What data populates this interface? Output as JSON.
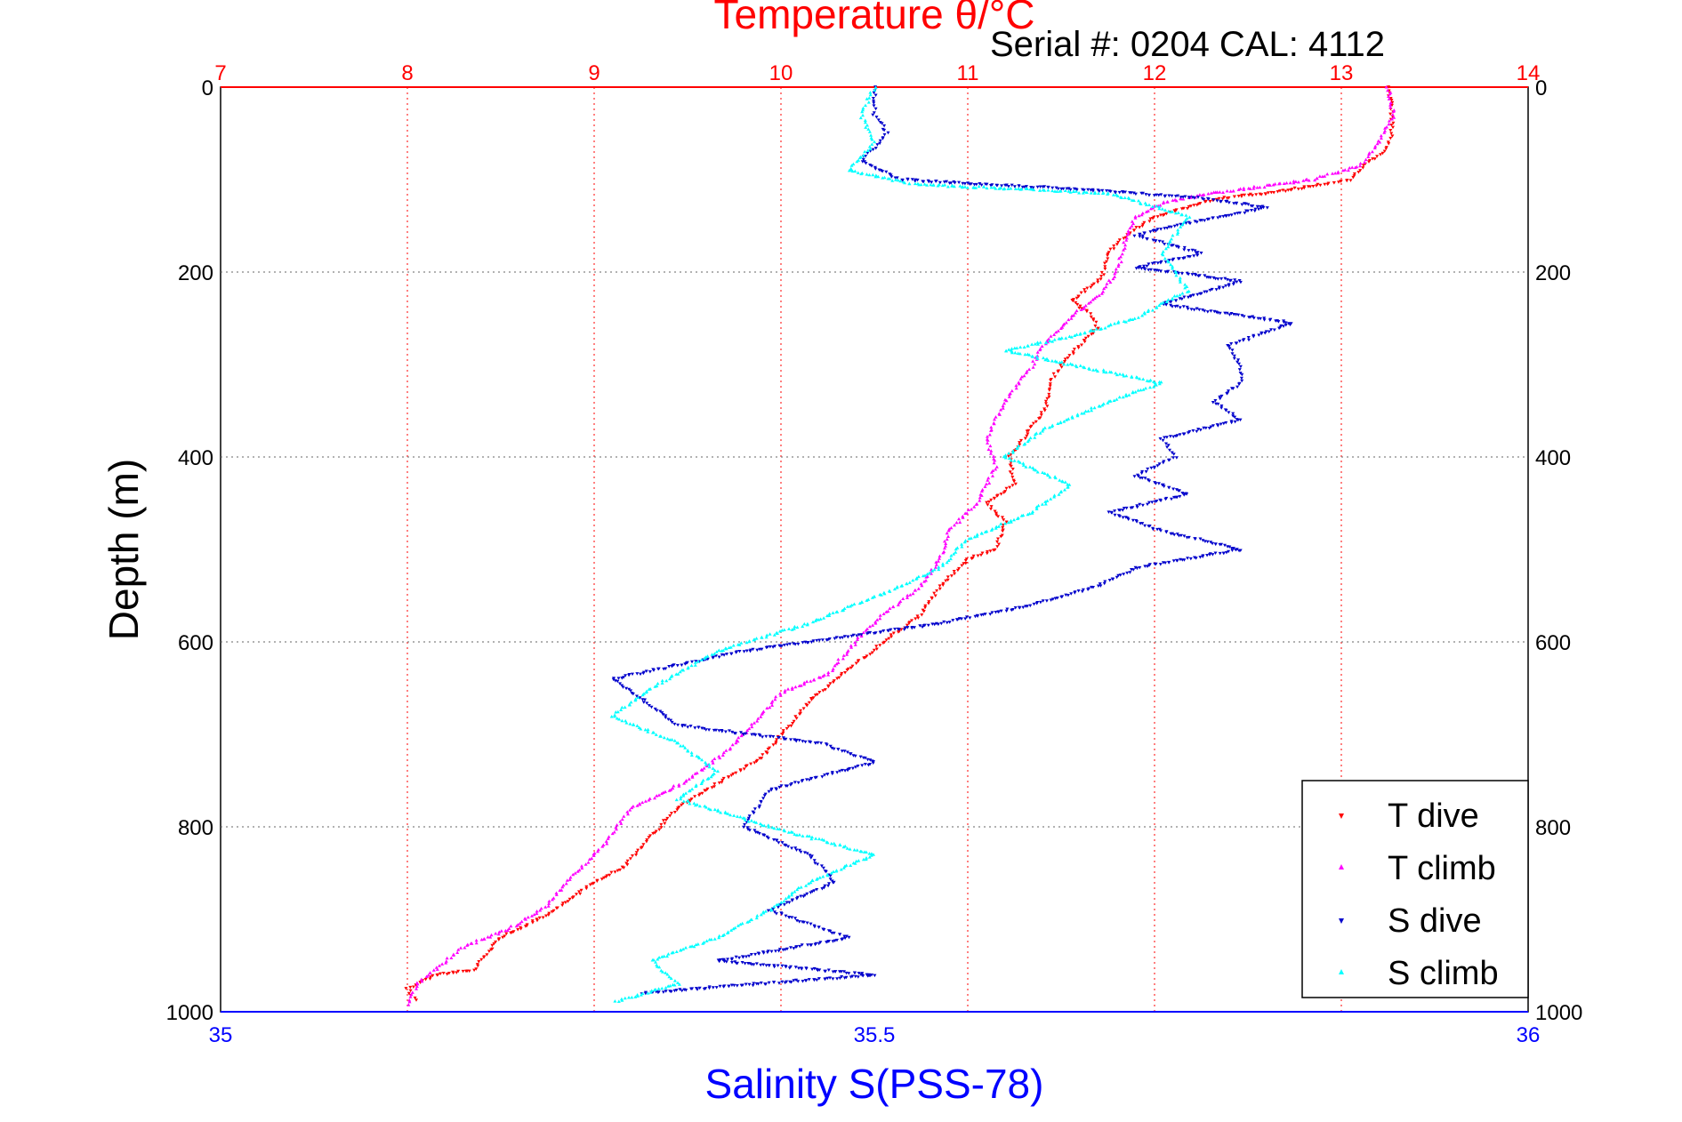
{
  "chart_data": {
    "type": "scatter",
    "title_top": "Temperature θ/°C",
    "title_bottom": "Salinity S(PSS-78)",
    "ylabel": "Depth (m)",
    "annotation": "Serial #: 0204  CAL: 4112",
    "temperature_axis": {
      "range": [
        7,
        14
      ],
      "ticks": [
        "7",
        "8",
        "9",
        "10",
        "11",
        "12",
        "13",
        "14"
      ]
    },
    "salinity_axis": {
      "range": [
        35,
        36
      ],
      "ticks": [
        "35",
        "35.5",
        "36"
      ]
    },
    "depth_axis": {
      "range": [
        0,
        1000
      ],
      "ticks": [
        "0",
        "200",
        "400",
        "600",
        "800",
        "1000"
      ]
    },
    "legend": [
      "T dive",
      "T climb",
      "S dive",
      "S climb"
    ],
    "colors": {
      "t_dive": "#ff0000",
      "t_climb": "#ff00ff",
      "s_dive": "#0000cc",
      "s_climb": "#00ffff",
      "grid": "#666666",
      "temp_grid": "#ff0000"
    },
    "series": [
      {
        "name": "T dive",
        "axis": "temperature",
        "points": [
          [
            13.25,
            0
          ],
          [
            13.27,
            20
          ],
          [
            13.27,
            50
          ],
          [
            13.23,
            70
          ],
          [
            13.12,
            85
          ],
          [
            13.05,
            100
          ],
          [
            12.6,
            115
          ],
          [
            12.35,
            120
          ],
          [
            12.0,
            140
          ],
          [
            11.85,
            160
          ],
          [
            11.75,
            180
          ],
          [
            11.72,
            205
          ],
          [
            11.6,
            225
          ],
          [
            11.55,
            230
          ],
          [
            11.65,
            245
          ],
          [
            11.7,
            260
          ],
          [
            11.55,
            290
          ],
          [
            11.45,
            315
          ],
          [
            11.42,
            345
          ],
          [
            11.3,
            380
          ],
          [
            11.22,
            400
          ],
          [
            11.25,
            430
          ],
          [
            11.1,
            450
          ],
          [
            11.2,
            470
          ],
          [
            11.15,
            500
          ],
          [
            11.0,
            510
          ],
          [
            10.85,
            540
          ],
          [
            10.75,
            570
          ],
          [
            10.55,
            600
          ],
          [
            10.3,
            640
          ],
          [
            10.15,
            665
          ],
          [
            10.05,
            690
          ],
          [
            9.9,
            725
          ],
          [
            9.6,
            760
          ],
          [
            9.45,
            780
          ],
          [
            9.3,
            810
          ],
          [
            9.15,
            845
          ],
          [
            9.0,
            860
          ],
          [
            8.75,
            895
          ],
          [
            8.5,
            920
          ],
          [
            8.35,
            955
          ],
          [
            8.15,
            960
          ],
          [
            8.0,
            975
          ],
          [
            8.05,
            990
          ]
        ]
      },
      {
        "name": "T climb",
        "axis": "temperature",
        "points": [
          [
            13.25,
            0
          ],
          [
            13.28,
            30
          ],
          [
            13.2,
            60
          ],
          [
            13.1,
            85
          ],
          [
            12.85,
            100
          ],
          [
            12.3,
            115
          ],
          [
            12.05,
            125
          ],
          [
            11.9,
            140
          ],
          [
            11.85,
            160
          ],
          [
            11.8,
            200
          ],
          [
            11.7,
            225
          ],
          [
            11.55,
            250
          ],
          [
            11.4,
            280
          ],
          [
            11.35,
            300
          ],
          [
            11.2,
            340
          ],
          [
            11.1,
            380
          ],
          [
            11.15,
            410
          ],
          [
            11.05,
            450
          ],
          [
            10.9,
            480
          ],
          [
            10.85,
            510
          ],
          [
            10.75,
            540
          ],
          [
            10.55,
            570
          ],
          [
            10.4,
            600
          ],
          [
            10.25,
            635
          ],
          [
            10.0,
            655
          ],
          [
            9.85,
            690
          ],
          [
            9.7,
            720
          ],
          [
            9.5,
            750
          ],
          [
            9.2,
            780
          ],
          [
            9.05,
            820
          ],
          [
            8.9,
            850
          ],
          [
            8.75,
            885
          ],
          [
            8.55,
            910
          ],
          [
            8.3,
            930
          ],
          [
            8.05,
            970
          ],
          [
            8.0,
            995
          ]
        ]
      },
      {
        "name": "S dive",
        "axis": "salinity",
        "points": [
          [
            35.5,
            0
          ],
          [
            35.5,
            30
          ],
          [
            35.51,
            50
          ],
          [
            35.49,
            80
          ],
          [
            35.52,
            100
          ],
          [
            35.65,
            110
          ],
          [
            35.75,
            120
          ],
          [
            35.8,
            130
          ],
          [
            35.73,
            150
          ],
          [
            35.7,
            160
          ],
          [
            35.75,
            180
          ],
          [
            35.7,
            195
          ],
          [
            35.78,
            210
          ],
          [
            35.72,
            235
          ],
          [
            35.82,
            255
          ],
          [
            35.77,
            280
          ],
          [
            35.78,
            300
          ],
          [
            35.78,
            320
          ],
          [
            35.76,
            340
          ],
          [
            35.78,
            360
          ],
          [
            35.72,
            380
          ],
          [
            35.73,
            400
          ],
          [
            35.7,
            420
          ],
          [
            35.74,
            440
          ],
          [
            35.68,
            460
          ],
          [
            35.72,
            480
          ],
          [
            35.78,
            500
          ],
          [
            35.7,
            520
          ],
          [
            35.67,
            540
          ],
          [
            35.62,
            560
          ],
          [
            35.55,
            580
          ],
          [
            35.4,
            610
          ],
          [
            35.3,
            640
          ],
          [
            35.32,
            660
          ],
          [
            35.35,
            690
          ],
          [
            35.46,
            710
          ],
          [
            35.5,
            730
          ],
          [
            35.42,
            760
          ],
          [
            35.4,
            800
          ],
          [
            35.45,
            830
          ],
          [
            35.47,
            860
          ],
          [
            35.42,
            890
          ],
          [
            35.48,
            920
          ],
          [
            35.38,
            945
          ],
          [
            35.5,
            960
          ],
          [
            35.32,
            980
          ]
        ]
      },
      {
        "name": "S climb",
        "axis": "salinity",
        "points": [
          [
            35.5,
            0
          ],
          [
            35.49,
            30
          ],
          [
            35.5,
            60
          ],
          [
            35.48,
            90
          ],
          [
            35.53,
            105
          ],
          [
            35.68,
            115
          ],
          [
            35.74,
            140
          ],
          [
            35.72,
            180
          ],
          [
            35.74,
            220
          ],
          [
            35.7,
            250
          ],
          [
            35.65,
            270
          ],
          [
            35.6,
            285
          ],
          [
            35.65,
            300
          ],
          [
            35.72,
            320
          ],
          [
            35.68,
            340
          ],
          [
            35.63,
            370
          ],
          [
            35.6,
            400
          ],
          [
            35.65,
            430
          ],
          [
            35.62,
            460
          ],
          [
            35.57,
            490
          ],
          [
            35.55,
            520
          ],
          [
            35.52,
            540
          ],
          [
            35.45,
            580
          ],
          [
            35.38,
            610
          ],
          [
            35.33,
            650
          ],
          [
            35.3,
            680
          ],
          [
            35.35,
            710
          ],
          [
            35.38,
            740
          ],
          [
            35.35,
            770
          ],
          [
            35.42,
            800
          ],
          [
            35.5,
            830
          ],
          [
            35.45,
            860
          ],
          [
            35.42,
            890
          ],
          [
            35.38,
            920
          ],
          [
            35.33,
            945
          ],
          [
            35.35,
            970
          ],
          [
            35.3,
            990
          ]
        ]
      }
    ]
  }
}
